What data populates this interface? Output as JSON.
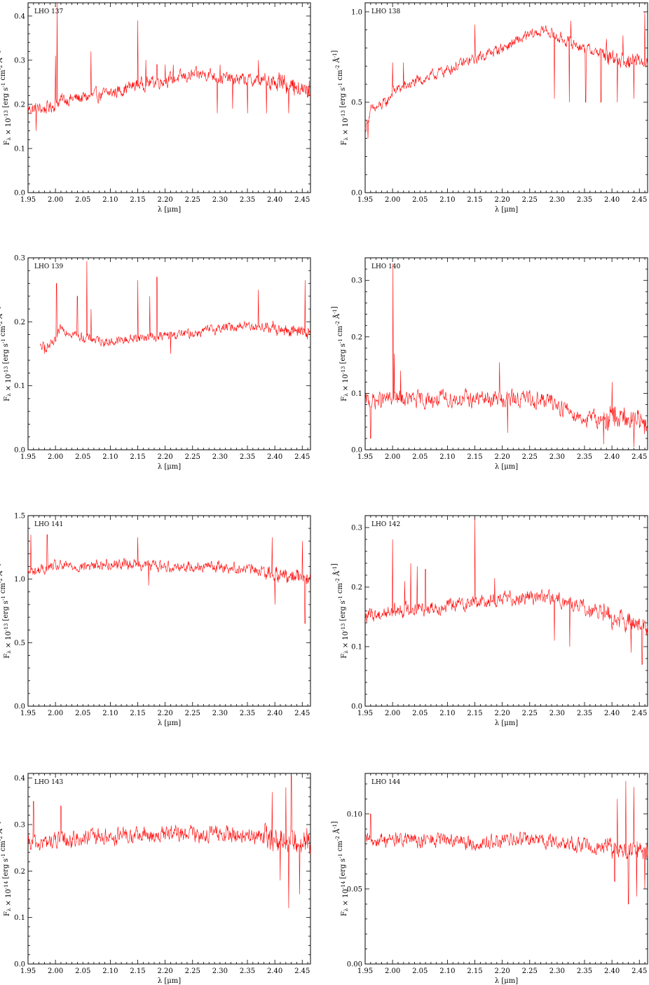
{
  "figure": {
    "series_color": "#ff0000",
    "xlabel": "λ [μm]",
    "x_ticks": [
      "1.95",
      "2.00",
      "2.05",
      "2.10",
      "2.15",
      "2.20",
      "2.25",
      "2.30",
      "2.35",
      "2.40",
      "2.45"
    ]
  },
  "chart_data": [
    {
      "type": "line",
      "title": "LHO 137",
      "xlabel": "λ [μm]",
      "ylabel": "F_λ × 10^-13 [erg s^-1 cm^-2 Å^-1]",
      "xlim": [
        1.95,
        2.465
      ],
      "ylim": [
        0.0,
        0.43
      ],
      "yticks": [
        0.0,
        0.1,
        0.2,
        0.3,
        0.4
      ],
      "ytick_labels": [
        "0.0",
        "0.1",
        "0.2",
        "0.3",
        "0.4"
      ],
      "x_start": 1.95,
      "grid": false,
      "noise": 0.012,
      "x": [
        1.95,
        1.98,
        2.0,
        2.01,
        2.05,
        2.1,
        2.15,
        2.2,
        2.25,
        2.28,
        2.3,
        2.35,
        2.4,
        2.465
      ],
      "y": [
        0.19,
        0.19,
        0.2,
        0.21,
        0.215,
        0.225,
        0.245,
        0.255,
        0.265,
        0.27,
        0.26,
        0.255,
        0.25,
        0.23
      ],
      "peaks": [
        [
          2.003,
          0.43
        ],
        [
          2.15,
          0.39
        ],
        [
          2.0,
          0.31
        ],
        [
          2.065,
          0.32
        ],
        [
          2.165,
          0.3
        ],
        [
          2.37,
          0.3
        ],
        [
          2.185,
          0.29
        ],
        [
          2.2,
          0.29
        ],
        [
          2.215,
          0.29
        ],
        [
          2.3,
          0.29
        ]
      ],
      "dips": [
        [
          2.295,
          0.18
        ],
        [
          2.323,
          0.19
        ],
        [
          2.35,
          0.18
        ],
        [
          2.385,
          0.18
        ],
        [
          2.425,
          0.18
        ],
        [
          1.965,
          0.14
        ]
      ]
    },
    {
      "type": "line",
      "title": "LHO 138",
      "xlabel": "λ [μm]",
      "ylabel": "F_λ × 10^-13 [erg s^-1 cm^-2 Å^-1]",
      "xlim": [
        1.95,
        2.465
      ],
      "ylim": [
        0.0,
        1.05
      ],
      "yticks": [
        0.0,
        0.5,
        1.0
      ],
      "ytick_labels": [
        "0.0",
        "0.5",
        "1.0"
      ],
      "x_start": 1.95,
      "grid": false,
      "noise": 0.025,
      "x": [
        1.95,
        1.96,
        1.99,
        2.0,
        2.05,
        2.1,
        2.15,
        2.2,
        2.25,
        2.28,
        2.3,
        2.35,
        2.4,
        2.465
      ],
      "y": [
        0.35,
        0.45,
        0.5,
        0.56,
        0.62,
        0.68,
        0.74,
        0.8,
        0.87,
        0.9,
        0.86,
        0.8,
        0.75,
        0.71
      ],
      "peaks": [
        [
          2.15,
          0.93
        ],
        [
          2.325,
          0.95
        ],
        [
          2.0,
          0.72
        ],
        [
          2.02,
          0.72
        ],
        [
          2.088,
          0.69
        ],
        [
          2.46,
          1.0
        ],
        [
          2.42,
          0.87
        ],
        [
          2.39,
          0.85
        ]
      ],
      "dips": [
        [
          2.295,
          0.52
        ],
        [
          2.322,
          0.5
        ],
        [
          2.352,
          0.5
        ],
        [
          2.38,
          0.5
        ],
        [
          2.41,
          0.5
        ],
        [
          2.44,
          0.52
        ],
        [
          1.955,
          0.3
        ]
      ]
    },
    {
      "type": "line",
      "title": "LHO 139",
      "xlabel": "λ [μm]",
      "ylabel": "F_λ × 10^-13 [erg s^-1 cm^-2 Å^-1]",
      "xlim": [
        1.95,
        2.465
      ],
      "ylim": [
        0.0,
        0.3
      ],
      "yticks": [
        0.0,
        0.1,
        0.2,
        0.3
      ],
      "ytick_labels": [
        "0.0",
        "0.1",
        "0.2",
        "0.3"
      ],
      "x_start": 1.972,
      "grid": false,
      "noise": 0.006,
      "x": [
        1.972,
        1.99,
        2.0,
        2.01,
        2.05,
        2.1,
        2.15,
        2.2,
        2.25,
        2.3,
        2.35,
        2.4,
        2.465
      ],
      "y": [
        0.16,
        0.162,
        0.168,
        0.19,
        0.175,
        0.168,
        0.175,
        0.178,
        0.182,
        0.19,
        0.195,
        0.19,
        0.18
      ],
      "peaks": [
        [
          2.057,
          0.295
        ],
        [
          2.15,
          0.265
        ],
        [
          2.185,
          0.27
        ],
        [
          2.172,
          0.24
        ],
        [
          2.002,
          0.26
        ],
        [
          2.04,
          0.24
        ],
        [
          2.065,
          0.22
        ],
        [
          2.37,
          0.25
        ],
        [
          2.455,
          0.265
        ]
      ],
      "dips": [
        [
          2.21,
          0.15
        ],
        [
          1.98,
          0.15
        ]
      ]
    },
    {
      "type": "line",
      "title": "LHO 140",
      "xlabel": "λ [μm]",
      "ylabel": "F_λ × 10^-13 [erg s^-1 cm^-2 Å^-1]",
      "xlim": [
        1.95,
        2.465
      ],
      "ylim": [
        0.0,
        0.34
      ],
      "yticks": [
        0.0,
        0.1,
        0.2,
        0.3
      ],
      "ytick_labels": [
        "0.0",
        "0.1",
        "0.2",
        "0.3"
      ],
      "x_start": 1.95,
      "grid": false,
      "noise": 0.012,
      "x": [
        1.95,
        2.0,
        2.05,
        2.1,
        2.15,
        2.2,
        2.25,
        2.29,
        2.32,
        2.35,
        2.4,
        2.465
      ],
      "y": [
        0.085,
        0.09,
        0.088,
        0.09,
        0.09,
        0.09,
        0.09,
        0.085,
        0.07,
        0.055,
        0.055,
        0.05
      ],
      "peaks": [
        [
          2.001,
          0.33
        ],
        [
          2.003,
          0.17
        ],
        [
          2.195,
          0.155
        ],
        [
          2.015,
          0.14
        ],
        [
          2.4,
          0.12
        ]
      ],
      "dips": [
        [
          2.21,
          0.03
        ],
        [
          2.385,
          0.01
        ],
        [
          2.44,
          0.005
        ],
        [
          1.96,
          0.02
        ]
      ]
    },
    {
      "type": "line",
      "title": "LHO 141",
      "xlabel": "λ [μm]",
      "ylabel": "F_λ × 10^-13 [erg s^-1 cm^-2 Å^-1]",
      "xlim": [
        1.95,
        2.465
      ],
      "ylim": [
        0.0,
        1.5
      ],
      "yticks": [
        0.0,
        0.5,
        1.0,
        1.5
      ],
      "ytick_labels": [
        "0.0",
        "0.5",
        "1.0",
        "1.5"
      ],
      "x_start": 1.95,
      "grid": false,
      "noise": 0.035,
      "x": [
        1.95,
        2.0,
        2.05,
        2.1,
        2.15,
        2.2,
        2.25,
        2.3,
        2.35,
        2.4,
        2.465
      ],
      "y": [
        1.05,
        1.1,
        1.1,
        1.12,
        1.12,
        1.1,
        1.1,
        1.1,
        1.08,
        1.05,
        1.0
      ],
      "peaks": [
        [
          2.15,
          1.33
        ],
        [
          1.985,
          1.35
        ],
        [
          1.955,
          1.35
        ],
        [
          2.395,
          1.33
        ],
        [
          2.45,
          1.3
        ]
      ],
      "dips": [
        [
          2.455,
          0.65
        ],
        [
          2.4,
          0.8
        ],
        [
          2.17,
          0.95
        ]
      ]
    },
    {
      "type": "line",
      "title": "LHO 142",
      "xlabel": "λ [μm]",
      "ylabel": "F_λ × 10^-13 [erg s^-1 cm^-2 Å^-1]",
      "xlim": [
        1.95,
        2.465
      ],
      "ylim": [
        0.0,
        0.32
      ],
      "yticks": [
        0.0,
        0.1,
        0.2,
        0.3
      ],
      "ytick_labels": [
        "0.0",
        "0.1",
        "0.2",
        "0.3"
      ],
      "x_start": 1.95,
      "grid": false,
      "noise": 0.01,
      "x": [
        1.95,
        2.0,
        2.05,
        2.1,
        2.15,
        2.2,
        2.25,
        2.3,
        2.35,
        2.4,
        2.465
      ],
      "y": [
        0.15,
        0.16,
        0.165,
        0.168,
        0.175,
        0.18,
        0.185,
        0.18,
        0.165,
        0.15,
        0.13
      ],
      "peaks": [
        [
          2.15,
          0.315
        ],
        [
          2.0,
          0.28
        ],
        [
          2.033,
          0.24
        ],
        [
          2.045,
          0.235
        ],
        [
          2.06,
          0.23
        ],
        [
          2.022,
          0.21
        ],
        [
          2.186,
          0.215
        ]
      ],
      "dips": [
        [
          2.295,
          0.11
        ],
        [
          2.323,
          0.1
        ],
        [
          2.455,
          0.07
        ],
        [
          2.435,
          0.09
        ]
      ]
    },
    {
      "type": "line",
      "title": "LHO 143",
      "xlabel": "λ [μm]",
      "ylabel": "F_λ × 10^-14 [erg s^-1 cm^-2 Å^-1]",
      "xlim": [
        1.95,
        2.465
      ],
      "ylim": [
        0.0,
        0.41
      ],
      "yticks": [
        0.0,
        0.1,
        0.2,
        0.3,
        0.4
      ],
      "ytick_labels": [
        "0.0",
        "0.1",
        "0.2",
        "0.3",
        "0.4"
      ],
      "x_start": 1.95,
      "grid": false,
      "noise": 0.015,
      "x": [
        1.95,
        2.0,
        2.05,
        2.1,
        2.15,
        2.2,
        2.25,
        2.3,
        2.35,
        2.4,
        2.465
      ],
      "y": [
        0.255,
        0.265,
        0.27,
        0.275,
        0.275,
        0.278,
        0.28,
        0.28,
        0.275,
        0.27,
        0.255
      ],
      "peaks": [
        [
          2.43,
          0.405
        ],
        [
          2.42,
          0.38
        ],
        [
          2.395,
          0.37
        ],
        [
          2.01,
          0.34
        ],
        [
          1.96,
          0.35
        ]
      ],
      "dips": [
        [
          2.425,
          0.12
        ],
        [
          2.445,
          0.15
        ],
        [
          2.41,
          0.18
        ]
      ]
    },
    {
      "type": "line",
      "title": "LHO 144",
      "xlabel": "λ [μm]",
      "ylabel": "F_λ × 10^-14 [erg s^-1 cm^-2 Å^-1]",
      "xlim": [
        1.95,
        2.465
      ],
      "ylim": [
        0.0,
        0.127
      ],
      "yticks": [
        0.0,
        0.05,
        0.1
      ],
      "ytick_labels": [
        "0.00",
        "0.05",
        "0.10"
      ],
      "x_start": 1.95,
      "grid": false,
      "noise": 0.004,
      "x": [
        1.95,
        2.0,
        2.05,
        2.1,
        2.15,
        2.2,
        2.25,
        2.3,
        2.35,
        2.4,
        2.465
      ],
      "y": [
        0.082,
        0.083,
        0.082,
        0.083,
        0.08,
        0.082,
        0.083,
        0.081,
        0.079,
        0.078,
        0.075
      ],
      "peaks": [
        [
          2.425,
          0.122
        ],
        [
          2.44,
          0.118
        ],
        [
          2.41,
          0.11
        ],
        [
          1.96,
          0.1
        ]
      ],
      "dips": [
        [
          2.43,
          0.04
        ],
        [
          2.445,
          0.045
        ],
        [
          2.46,
          0.05
        ],
        [
          2.405,
          0.055
        ]
      ]
    }
  ]
}
